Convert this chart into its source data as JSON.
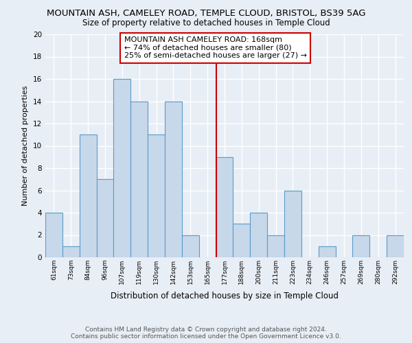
{
  "title": "MOUNTAIN ASH, CAMELEY ROAD, TEMPLE CLOUD, BRISTOL, BS39 5AG",
  "subtitle": "Size of property relative to detached houses in Temple Cloud",
  "xlabel": "Distribution of detached houses by size in Temple Cloud",
  "ylabel": "Number of detached properties",
  "categories": [
    "61sqm",
    "73sqm",
    "84sqm",
    "96sqm",
    "107sqm",
    "119sqm",
    "130sqm",
    "142sqm",
    "153sqm",
    "165sqm",
    "177sqm",
    "188sqm",
    "200sqm",
    "211sqm",
    "223sqm",
    "234sqm",
    "246sqm",
    "257sqm",
    "269sqm",
    "280sqm",
    "292sqm"
  ],
  "values": [
    4,
    1,
    11,
    7,
    16,
    14,
    11,
    14,
    2,
    0,
    9,
    3,
    4,
    2,
    6,
    0,
    1,
    0,
    2,
    0,
    2
  ],
  "bar_color": "#c6d8ea",
  "bar_edge_color": "#5a9ac8",
  "ylim": [
    0,
    20
  ],
  "yticks": [
    0,
    2,
    4,
    6,
    8,
    10,
    12,
    14,
    16,
    18,
    20
  ],
  "vline_x_index": 9.5,
  "vline_color": "#cc0000",
  "annotation_title": "MOUNTAIN ASH CAMELEY ROAD: 168sqm",
  "annotation_line1": "← 74% of detached houses are smaller (80)",
  "annotation_line2": "25% of semi-detached houses are larger (27) →",
  "annotation_box_color": "#ffffff",
  "annotation_box_edge": "#cc0000",
  "footer_line1": "Contains HM Land Registry data © Crown copyright and database right 2024.",
  "footer_line2": "Contains public sector information licensed under the Open Government Licence v3.0.",
  "background_color": "#e8eef5",
  "grid_color": "#ffffff",
  "title_fontsize": 9.5,
  "subtitle_fontsize": 8.5,
  "annot_fontsize": 8.0,
  "ylabel_fontsize": 8,
  "xlabel_fontsize": 8.5,
  "footer_fontsize": 6.5
}
